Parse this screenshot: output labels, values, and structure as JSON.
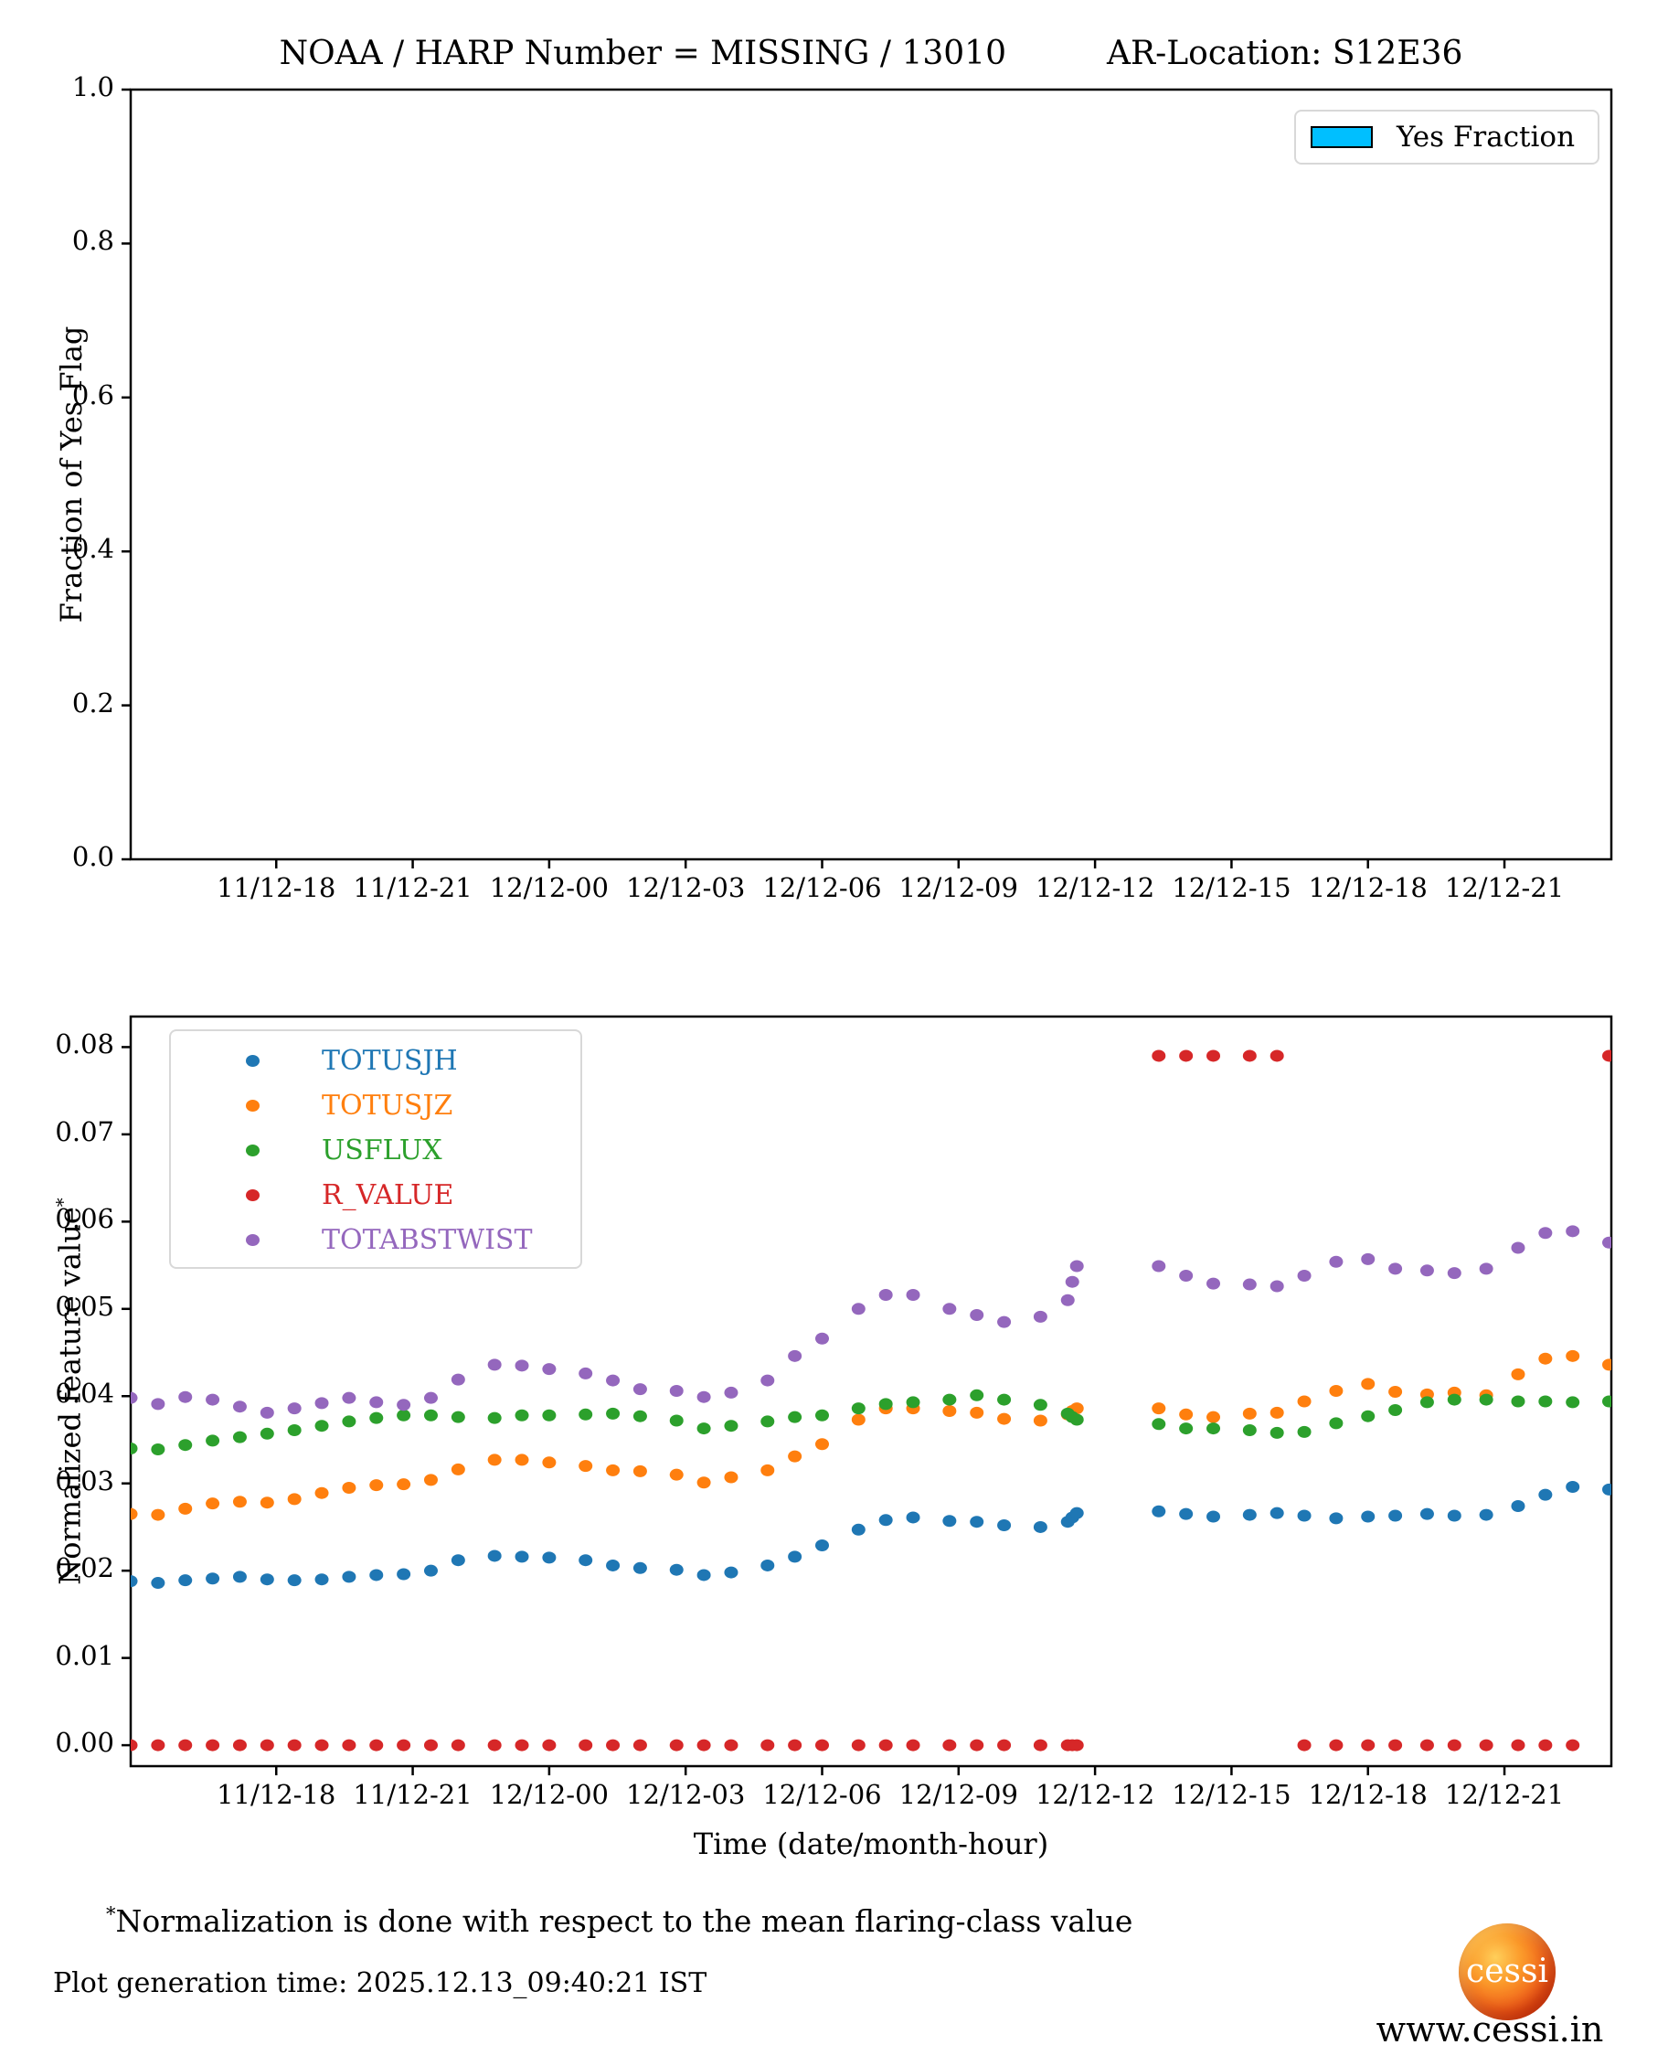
{
  "header": {
    "title_left": "NOAA / HARP Number = MISSING / 13010",
    "title_right": "AR-Location: S12E36"
  },
  "footer": {
    "footnote_marker": "*",
    "footnote_text": "Normalization is done with respect to the mean flaring-class value",
    "generation_time": "Plot generation time: 2025.12.13_09:40:21 IST",
    "logo_text": "cessi",
    "website": "www.cessi.in"
  },
  "colors": {
    "yes_fraction_patch": "#00BFFF",
    "totusjh": "#1f77b4",
    "totusjz": "#ff7f0e",
    "usflux": "#2ca02c",
    "r_value": "#d62728",
    "totabstwist": "#9467bd",
    "axis": "#000000",
    "legend_border": "#d8d8d8"
  },
  "chart_data": [
    {
      "id": "yes-fraction-chart",
      "type": "bar",
      "title": "",
      "ylabel": "Fraction of Yes Flag",
      "xlabel": "",
      "ylim": [
        0.0,
        1.0
      ],
      "xlim_hours": [
        14.8,
        47.35
      ],
      "grid": false,
      "legend_position": "upper right",
      "legend": [
        {
          "label": "Yes Fraction",
          "color": "#00BFFF"
        }
      ],
      "yticks": [
        {
          "v": 0.0,
          "label": "0.0"
        },
        {
          "v": 0.2,
          "label": "0.2"
        },
        {
          "v": 0.4,
          "label": "0.4"
        },
        {
          "v": 0.6,
          "label": "0.6"
        },
        {
          "v": 0.8,
          "label": "0.8"
        },
        {
          "v": 1.0,
          "label": "1.0"
        }
      ],
      "xticks": [
        {
          "hour": 18,
          "label": "11/12-18"
        },
        {
          "hour": 21,
          "label": "11/12-21"
        },
        {
          "hour": 24,
          "label": "12/12-00"
        },
        {
          "hour": 27,
          "label": "12/12-03"
        },
        {
          "hour": 30,
          "label": "12/12-06"
        },
        {
          "hour": 33,
          "label": "12/12-09"
        },
        {
          "hour": 36,
          "label": "12/12-12"
        },
        {
          "hour": 39,
          "label": "12/12-15"
        },
        {
          "hour": 42,
          "label": "12/12-18"
        },
        {
          "hour": 45,
          "label": "12/12-21"
        }
      ],
      "categories": [],
      "values": [],
      "note": "No yes-fraction bars are visible; plot area is empty."
    },
    {
      "id": "normalized-features-chart",
      "type": "scatter",
      "title": "",
      "ylabel": "Normalized feature value",
      "ylabel_superscript": "*",
      "xlabel": "Time (date/month-hour)",
      "ylim": [
        -0.0024,
        0.0835
      ],
      "xlim_hours": [
        14.8,
        47.35
      ],
      "grid": false,
      "legend_position": "upper left",
      "yticks": [
        {
          "v": 0.0,
          "label": "0.00"
        },
        {
          "v": 0.01,
          "label": "0.01"
        },
        {
          "v": 0.02,
          "label": "0.02"
        },
        {
          "v": 0.03,
          "label": "0.03"
        },
        {
          "v": 0.04,
          "label": "0.04"
        },
        {
          "v": 0.05,
          "label": "0.05"
        },
        {
          "v": 0.06,
          "label": "0.06"
        },
        {
          "v": 0.07,
          "label": "0.07"
        },
        {
          "v": 0.08,
          "label": "0.08"
        }
      ],
      "xticks": [
        {
          "hour": 18,
          "label": "11/12-18"
        },
        {
          "hour": 21,
          "label": "11/12-21"
        },
        {
          "hour": 24,
          "label": "12/12-00"
        },
        {
          "hour": 27,
          "label": "12/12-03"
        },
        {
          "hour": 30,
          "label": "12/12-06"
        },
        {
          "hour": 33,
          "label": "12/12-09"
        },
        {
          "hour": 36,
          "label": "12/12-12"
        },
        {
          "hour": 39,
          "label": "12/12-15"
        },
        {
          "hour": 42,
          "label": "12/12-18"
        },
        {
          "hour": 45,
          "label": "12/12-21"
        }
      ],
      "x_hours_note": "hours since 11/12 00:00; 24+ means 12/12",
      "x_hours": [
        14.8,
        15.4,
        16.0,
        16.6,
        17.2,
        17.8,
        18.4,
        19.0,
        19.6,
        20.2,
        20.8,
        21.4,
        22.0,
        22.8,
        23.4,
        24.0,
        24.8,
        25.4,
        26.0,
        26.8,
        27.4,
        28.0,
        28.8,
        29.4,
        30.0,
        30.8,
        31.4,
        32.0,
        32.8,
        33.4,
        34.0,
        34.8,
        35.4,
        35.5,
        35.6,
        37.4,
        38.0,
        38.6,
        39.4,
        40.0,
        40.6,
        41.3,
        42.0,
        42.6,
        43.3,
        43.9,
        44.6,
        45.3,
        45.9,
        46.5,
        47.3
      ],
      "series": [
        {
          "name": "TOTUSJH",
          "color": "#1f77b4",
          "values": [
            0.0188,
            0.0186,
            0.0189,
            0.0191,
            0.0193,
            0.019,
            0.0189,
            0.019,
            0.0193,
            0.0195,
            0.0196,
            0.02,
            0.0212,
            0.0217,
            0.0216,
            0.0215,
            0.0212,
            0.0206,
            0.0203,
            0.0201,
            0.0195,
            0.0198,
            0.0206,
            0.0216,
            0.0229,
            0.0247,
            0.0258,
            0.0261,
            0.0257,
            0.0256,
            0.0252,
            0.025,
            0.0256,
            0.0261,
            0.0266,
            0.0268,
            0.0265,
            0.0262,
            0.0264,
            0.0266,
            0.0263,
            0.026,
            0.0262,
            0.0263,
            0.0265,
            0.0263,
            0.0264,
            0.0274,
            0.0287,
            0.0296,
            0.0293
          ]
        },
        {
          "name": "TOTUSJZ",
          "color": "#ff7f0e",
          "values": [
            0.0265,
            0.0264,
            0.0271,
            0.0277,
            0.0279,
            0.0278,
            0.0282,
            0.0289,
            0.0295,
            0.0298,
            0.0299,
            0.0304,
            0.0316,
            0.0327,
            0.0327,
            0.0324,
            0.032,
            0.0315,
            0.0314,
            0.031,
            0.0301,
            0.0307,
            0.0315,
            0.0331,
            0.0345,
            0.0373,
            0.0386,
            0.0386,
            0.0383,
            0.0381,
            0.0374,
            0.0372,
            0.0379,
            0.0383,
            0.0386,
            0.0386,
            0.0379,
            0.0376,
            0.038,
            0.0381,
            0.0394,
            0.0406,
            0.0414,
            0.0405,
            0.0402,
            0.0404,
            0.0401,
            0.0425,
            0.0443,
            0.0446,
            0.0436
          ]
        },
        {
          "name": "USFLUX",
          "color": "#2ca02c",
          "values": [
            0.034,
            0.0339,
            0.0344,
            0.0349,
            0.0353,
            0.0357,
            0.0361,
            0.0366,
            0.0371,
            0.0375,
            0.0378,
            0.0378,
            0.0376,
            0.0375,
            0.0378,
            0.0378,
            0.0379,
            0.038,
            0.0377,
            0.0372,
            0.0363,
            0.0366,
            0.0371,
            0.0376,
            0.0378,
            0.0386,
            0.0391,
            0.0393,
            0.0396,
            0.0401,
            0.0396,
            0.039,
            0.038,
            0.0376,
            0.0373,
            0.0368,
            0.0363,
            0.0363,
            0.0361,
            0.0358,
            0.0359,
            0.0369,
            0.0377,
            0.0384,
            0.0393,
            0.0396,
            0.0396,
            0.0394,
            0.0394,
            0.0393,
            0.0394
          ]
        },
        {
          "name": "R_VALUE",
          "color": "#d62728",
          "values": [
            0.0,
            0.0,
            0.0,
            0.0,
            0.0,
            0.0,
            0.0,
            0.0,
            0.0,
            0.0,
            0.0,
            0.0,
            0.0,
            0.0,
            0.0,
            0.0,
            0.0,
            0.0,
            0.0,
            0.0,
            0.0,
            0.0,
            0.0,
            0.0,
            0.0,
            0.0,
            0.0,
            0.0,
            0.0,
            0.0,
            0.0,
            0.0,
            0.0,
            0.0,
            0.0,
            0.079,
            0.079,
            0.079,
            0.079,
            0.079,
            0.0,
            0.0,
            0.0,
            0.0,
            0.0,
            0.0,
            0.0,
            0.0,
            0.0,
            0.0,
            0.079
          ]
        },
        {
          "name": "TOTABSTWIST",
          "color": "#9467bd",
          "values": [
            0.0398,
            0.0391,
            0.0399,
            0.0396,
            0.0388,
            0.0381,
            0.0386,
            0.0392,
            0.0398,
            0.0393,
            0.039,
            0.0398,
            0.0419,
            0.0436,
            0.0435,
            0.0431,
            0.0426,
            0.0418,
            0.0408,
            0.0406,
            0.0399,
            0.0404,
            0.0418,
            0.0446,
            0.0466,
            0.05,
            0.0516,
            0.0516,
            0.05,
            0.0493,
            0.0485,
            0.0491,
            0.051,
            0.0531,
            0.0549,
            0.0549,
            0.0538,
            0.0529,
            0.0528,
            0.0526,
            0.0538,
            0.0554,
            0.0557,
            0.0546,
            0.0544,
            0.0541,
            0.0546,
            0.057,
            0.0587,
            0.0589,
            0.0576
          ]
        }
      ]
    }
  ]
}
